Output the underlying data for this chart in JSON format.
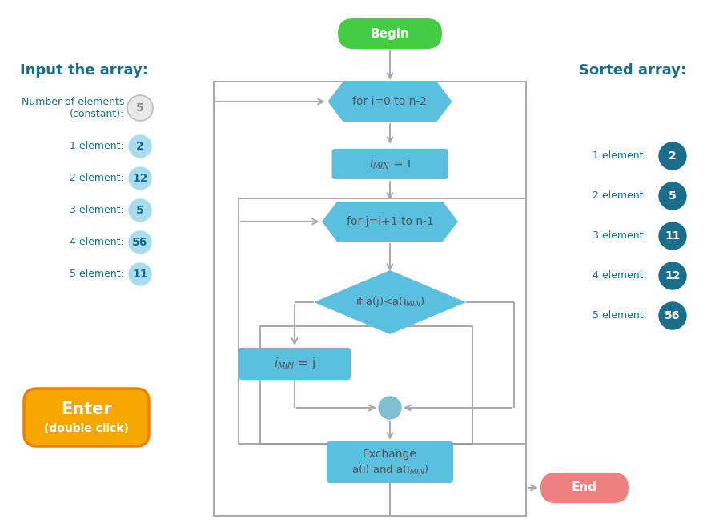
{
  "bg_color": "#ffffff",
  "title_input": "Input the array:",
  "title_sorted": "Sorted array:",
  "input_labels": [
    "Number of elements\n(constant):",
    "1 element:",
    "2 element:",
    "3 element:",
    "4 element:",
    "5 element:"
  ],
  "input_values": [
    "5",
    "2",
    "12",
    "5",
    "56",
    "11"
  ],
  "sorted_labels": [
    "1 element:",
    "2 element:",
    "3 element:",
    "4 element:",
    "5 element:"
  ],
  "sorted_values": [
    "2",
    "5",
    "11",
    "12",
    "56"
  ],
  "input_circle_color": "#aadcf0",
  "input_first_circle_color": "#e8e8e8",
  "sorted_circle_color": "#1a6e8a",
  "enter_btn_color1": "#f7a800",
  "enter_btn_color2": "#f47c00",
  "flowchart_node_color": "#5bbfdf",
  "begin_color": "#44cc44",
  "end_color": "#f08080",
  "connector_color": "#7fbfcf",
  "arrow_color": "#aaaaaa",
  "box_border_color": "#999999",
  "text_color_dark": "#1a6e8a",
  "text_color_flow": "#555555"
}
